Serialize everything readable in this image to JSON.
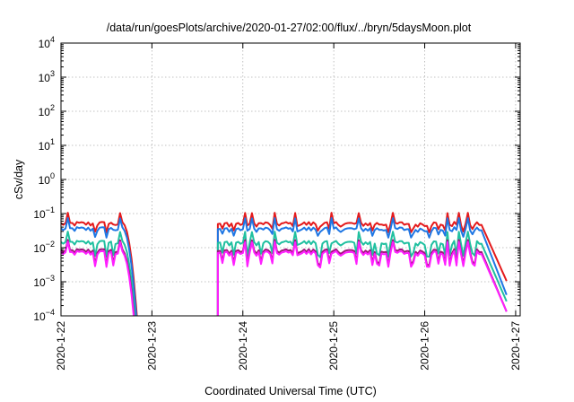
{
  "chart_data": {
    "type": "line",
    "title": "/data/run/goesPlots/archive/2020-01-27/02:00/flux/../bryn/5daysMoon.plot",
    "xlabel": "Coordinated Universal Time (UTC)",
    "ylabel": "cSv/day",
    "xlim": [
      0,
      5.05
    ],
    "ylim_log10": [
      -4,
      4
    ],
    "yscale": "log",
    "grid": true,
    "x_tick_labels": [
      "2020-1-22",
      "2020-1-23",
      "2020-1-24",
      "2020-1-25",
      "2020-1-26",
      "2020-1-27"
    ],
    "x_tick_values": [
      0,
      1,
      2,
      3,
      4,
      5
    ],
    "y_tick_exponents": [
      -4,
      -3,
      -2,
      -1,
      0,
      1,
      2,
      3,
      4
    ],
    "data_gap_x": [
      0.72,
      0.72
    ],
    "series": [
      {
        "color": "#e41a1c",
        "level": 0.05,
        "x_start": 0,
        "x_end": 4.92,
        "gap": [
          0.68,
          1.72
        ],
        "decay_end_value": 0.0008
      },
      {
        "color": "#1f77e4",
        "level": 0.035,
        "x_start": 0,
        "x_end": 4.92,
        "gap": [
          0.68,
          1.72
        ],
        "decay_end_value": 0.0003
      },
      {
        "color": "#20c0a0",
        "level": 0.014,
        "x_start": 0,
        "x_end": 4.92,
        "gap": [
          0.68,
          1.72
        ],
        "decay_end_value": 0.0002
      },
      {
        "color": "#a0157a",
        "level": 0.008,
        "x_start": 0,
        "x_end": 4.92,
        "gap": [
          0.68,
          1.72
        ],
        "decay_end_value": 0.0001
      },
      {
        "color": "#ff1fff",
        "level": 0.007,
        "x_start": 0,
        "x_end": 4.92,
        "gap": [
          0.68,
          1.72
        ],
        "decay_end_value": 0.0001
      }
    ]
  }
}
